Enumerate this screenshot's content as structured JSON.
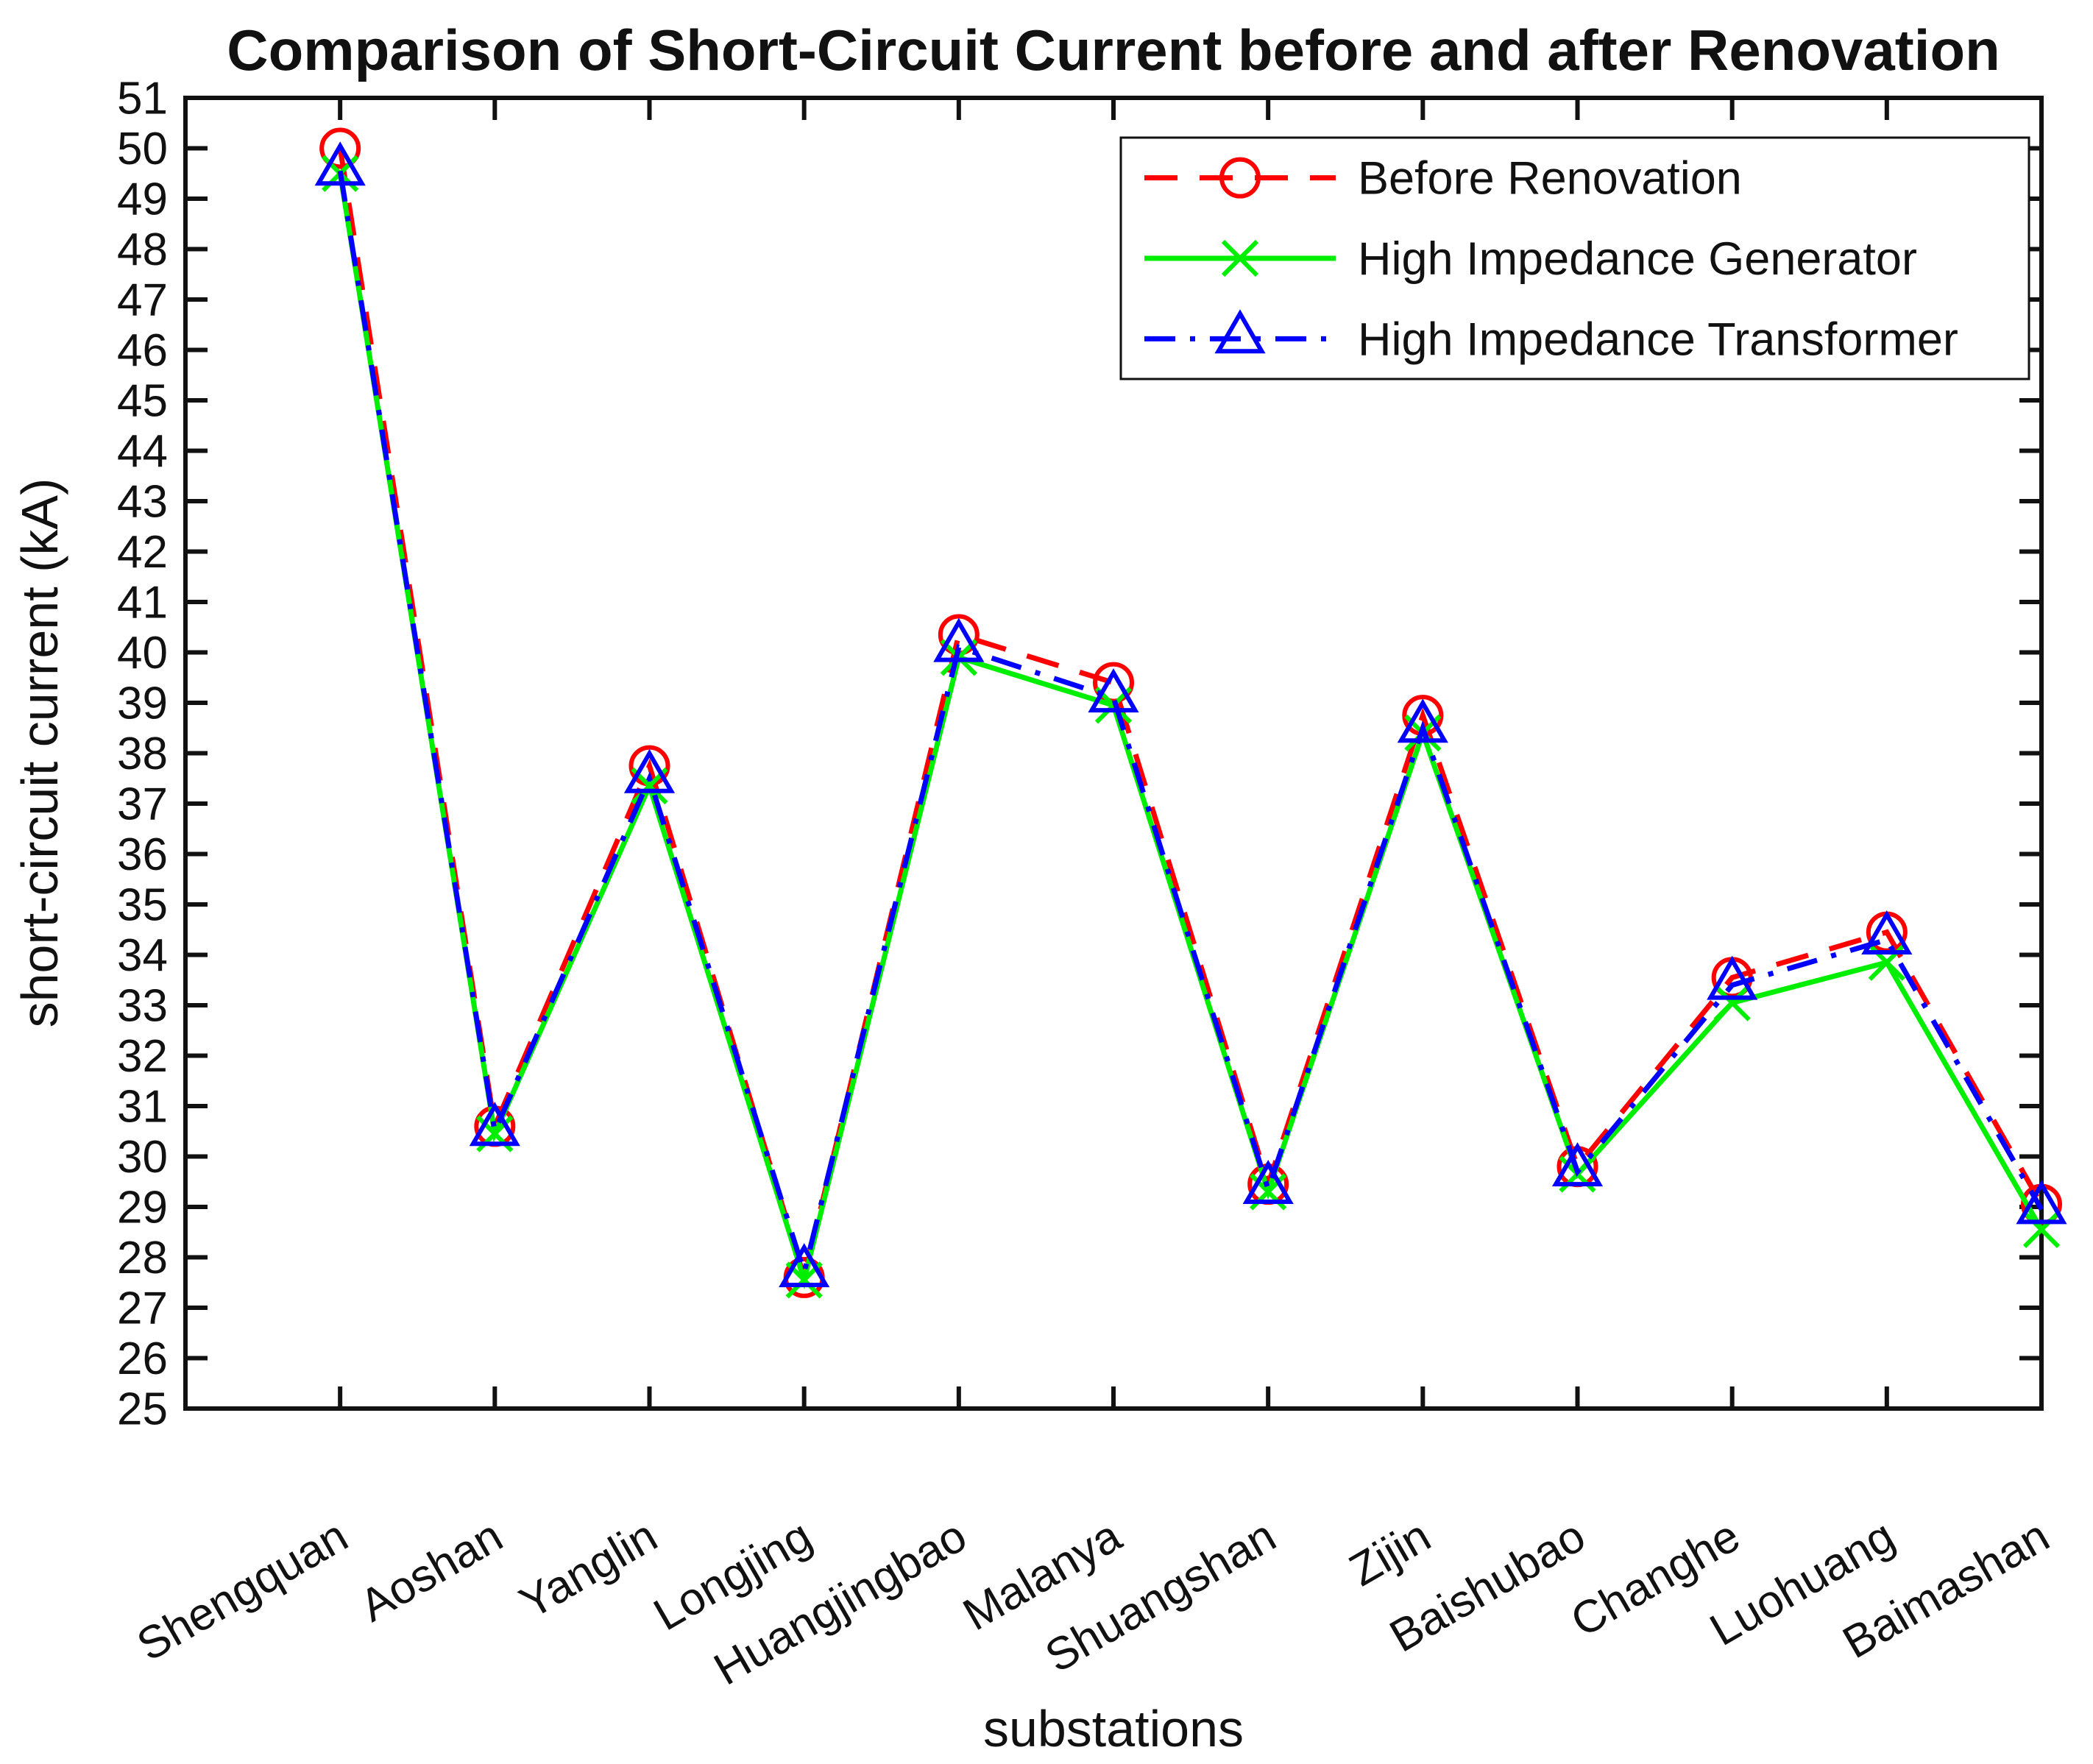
{
  "figure": {
    "title": "Comparison of Short-Circuit Current before and after Renovation",
    "xlabel": "substations",
    "ylabel": "short-circuit current (kA)"
  },
  "chart_data": {
    "type": "line",
    "title": "Comparison of Short-Circuit Current before and after Renovation",
    "xlabel": "substations",
    "ylabel": "short-circuit current (kA)",
    "ylim": [
      25,
      51
    ],
    "ytick_step": 1,
    "grid": false,
    "legend_position": "top-right-inside",
    "axis_color": "#111111",
    "categories": [
      "Shengquan",
      "Aoshan",
      "Yanglin",
      "Longjing",
      "Huangjingbao",
      "Malanya",
      "Shuangshan",
      "Zijin",
      "Baishubao",
      "Changhe",
      "Luohuang",
      "Baimashan"
    ],
    "series": [
      {
        "name": "Before Renovation",
        "color": "#ff0000",
        "line_style": "dashed",
        "marker": "circle",
        "values": [
          50.0,
          30.6,
          37.75,
          27.6,
          40.35,
          39.4,
          29.45,
          38.75,
          29.8,
          33.55,
          34.45,
          29.05
        ]
      },
      {
        "name": "High Impedance Generator",
        "color": "#00ee00",
        "line_style": "solid",
        "marker": "x",
        "values": [
          49.5,
          30.45,
          37.35,
          27.55,
          39.9,
          38.95,
          29.3,
          38.4,
          29.65,
          33.05,
          33.85,
          28.55
        ]
      },
      {
        "name": "High Impedance Transformer",
        "color": "#0000ff",
        "line_style": "dash-dot",
        "marker": "triangle-up",
        "values": [
          49.55,
          30.5,
          37.5,
          27.7,
          40.1,
          39.1,
          29.35,
          38.5,
          29.7,
          33.4,
          34.3,
          28.95
        ]
      }
    ]
  }
}
